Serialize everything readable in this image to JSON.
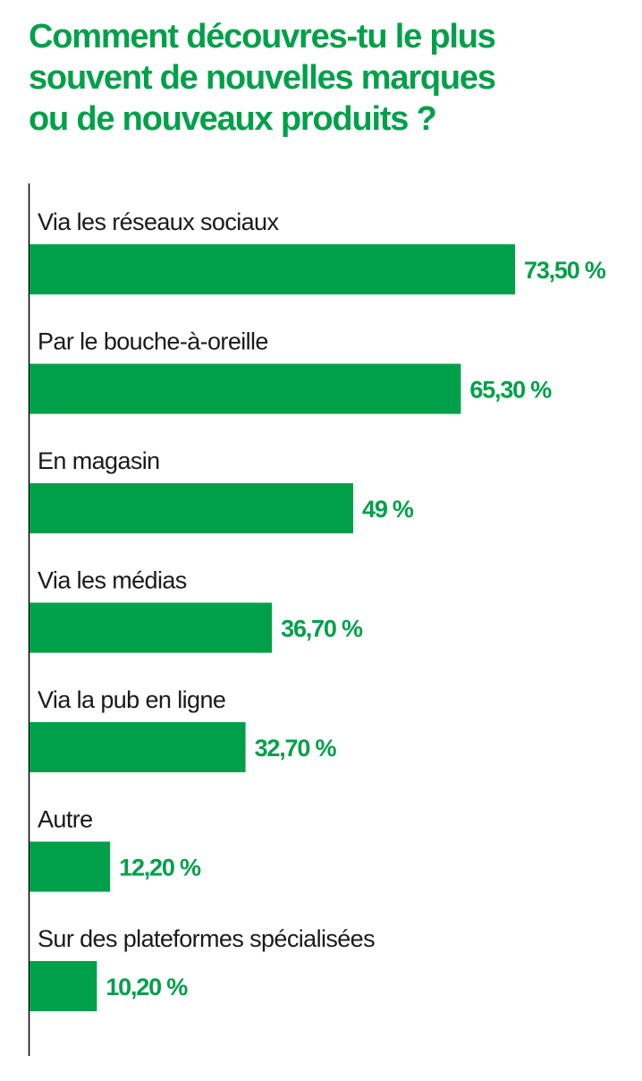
{
  "title_lines": [
    "Comment découvres-tu le plus",
    "souvent de nouvelles marques",
    "ou de nouveaux produits ?"
  ],
  "colors": {
    "accent": "#00a04a",
    "text": "#1a1a1a",
    "axis": "#000000"
  },
  "chart_data": {
    "type": "bar",
    "orientation": "horizontal",
    "title": "Comment découvres-tu le plus souvent de nouvelles marques ou de nouveaux produits ?",
    "categories": [
      "Via les réseaux sociaux",
      "Par le bouche-à-oreille",
      "En magasin",
      "Via les médias",
      "Via la pub en ligne",
      "Autre",
      "Sur des plateformes spécialisées"
    ],
    "values": [
      73.5,
      65.3,
      49,
      36.7,
      32.7,
      12.2,
      10.2
    ],
    "value_labels": [
      "73,50 %",
      "65,30 %",
      "49 %",
      "36,70 %",
      "32,70 %",
      "12,20 %",
      "10,20 %"
    ],
    "xlim": [
      0,
      73.5
    ],
    "grid": false,
    "legend": "none"
  }
}
